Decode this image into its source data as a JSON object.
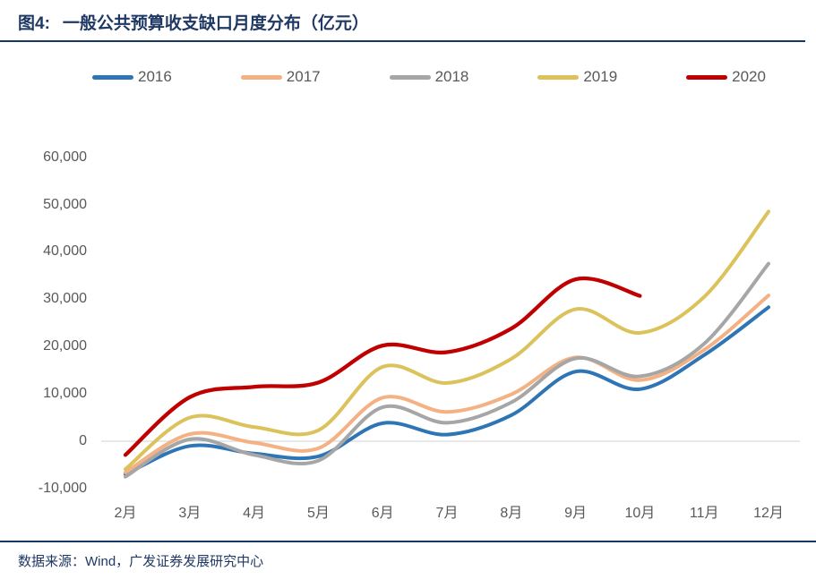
{
  "figure": {
    "title_prefix": "图4:",
    "title_main": "一般公共预算收支缺口月度分布（亿元）",
    "source": "数据来源：Wind，广发证券发展研究中心"
  },
  "colors": {
    "title_navy": "#1F3864",
    "rule_navy": "#17375E",
    "axis_label_gray": "#595959",
    "zero_line_gray": "#D9D9D9"
  },
  "chart_data": {
    "type": "line",
    "title": "一般公共预算收支缺口月度分布（亿元）",
    "unit": "亿元",
    "categories": [
      "2月",
      "3月",
      "4月",
      "5月",
      "6月",
      "7月",
      "8月",
      "9月",
      "10月",
      "11月",
      "12月"
    ],
    "ylim": [
      -10000,
      60000
    ],
    "y_tick_values": [
      60000,
      50000,
      40000,
      30000,
      20000,
      10000,
      0,
      -10000
    ],
    "y_tick_labels": [
      "60,000",
      "50,000",
      "40,000",
      "30,000",
      "20,000",
      "10,000",
      "0",
      "-10,000"
    ],
    "grid": "zero-axis-line-only",
    "legend_position": "top",
    "line_style": "smoothed",
    "series": [
      {
        "name": "2016",
        "color": "#2E75B6",
        "values": [
          -7000,
          -1000,
          -2600,
          -3200,
          3800,
          1400,
          5500,
          14700,
          11000,
          18200,
          28300
        ]
      },
      {
        "name": "2017",
        "color": "#F4B183",
        "values": [
          -6600,
          1500,
          -300,
          -1500,
          9200,
          6200,
          9900,
          17700,
          12900,
          19300,
          30800
        ]
      },
      {
        "name": "2018",
        "color": "#A6A6A6",
        "values": [
          -7500,
          400,
          -2900,
          -4100,
          7200,
          3900,
          8200,
          17500,
          13700,
          20600,
          37500
        ]
      },
      {
        "name": "2019",
        "color": "#DBC25A",
        "values": [
          -5900,
          5000,
          3000,
          2300,
          15700,
          12300,
          17400,
          27900,
          22900,
          30500,
          48500
        ]
      },
      {
        "name": "2020",
        "color": "#C00000",
        "values": [
          -2900,
          9300,
          11500,
          12400,
          20200,
          18800,
          23800,
          34200,
          30700,
          null,
          null
        ]
      }
    ]
  }
}
